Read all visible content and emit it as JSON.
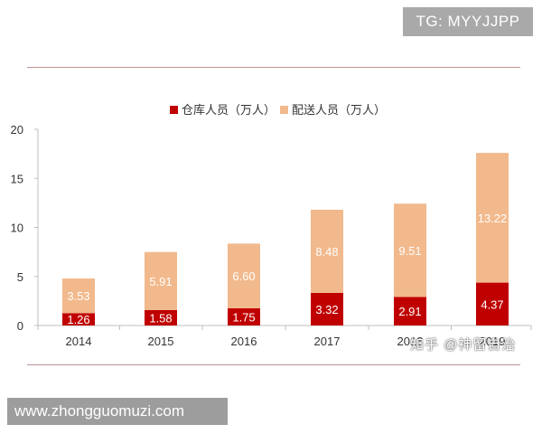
{
  "watermark_top": "TG: MYYJJPP",
  "watermark_bottom": "www.zhongguomuzi.com",
  "watermark_overlay": "知乎 @神留自治",
  "colors": {
    "warehouse": "#c00000",
    "delivery": "#f2b98c",
    "axis": "#bfbfbf"
  },
  "chart_data": {
    "type": "bar",
    "stacked": true,
    "categories": [
      "2014",
      "2015",
      "2016",
      "2017",
      "2018",
      "2019"
    ],
    "series": [
      {
        "name": "仓库人员（万人）",
        "values": [
          1.26,
          1.58,
          1.75,
          3.32,
          2.91,
          4.37
        ],
        "labels": [
          "1.26",
          "1.58",
          "1.75",
          "3.32",
          "2.91",
          "4.37"
        ]
      },
      {
        "name": "配送人员（万人）",
        "values": [
          3.53,
          5.91,
          6.6,
          8.48,
          9.51,
          13.22
        ],
        "labels": [
          "3.53",
          "5.91",
          "6.60",
          "8.48",
          "9.51",
          "13.22"
        ]
      }
    ],
    "ylim": [
      0,
      20
    ],
    "yticks": [
      "0",
      "5",
      "10",
      "15",
      "20"
    ],
    "legend_position": "top-center",
    "grid": false
  }
}
